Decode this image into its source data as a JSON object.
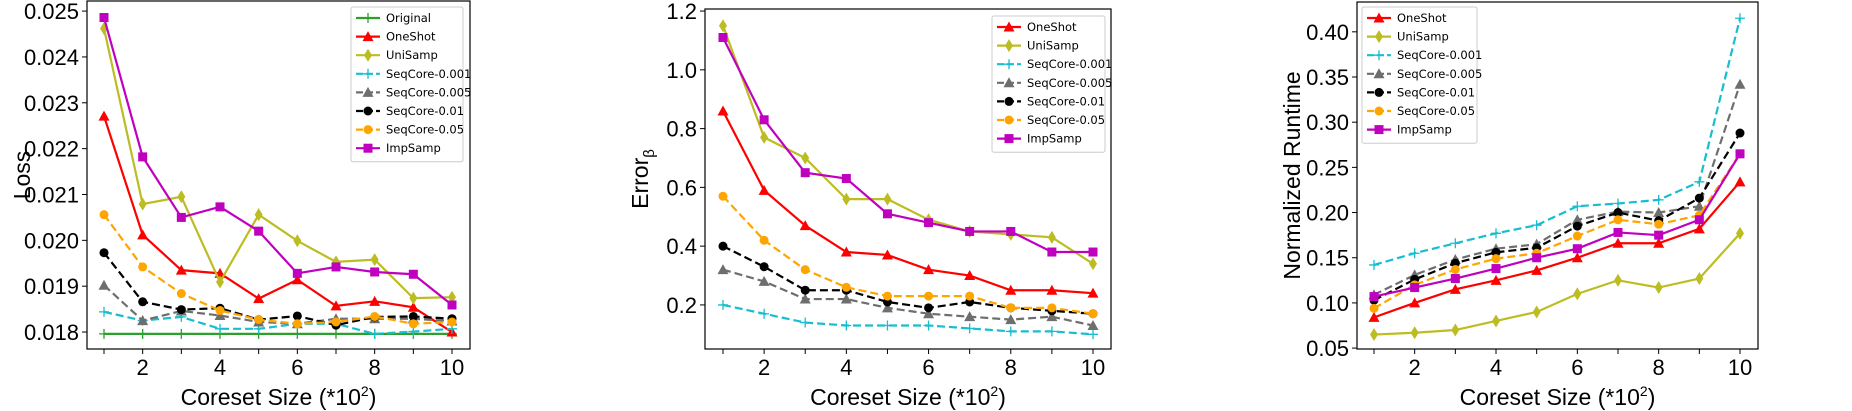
{
  "chart_data": [
    {
      "type": "line",
      "title": "",
      "xlabel": "Coreset Size (*10",
      "xlabel_sup": "2",
      "xlabel_end": ")",
      "ylabel": "Loss",
      "ylabel_sub": "",
      "x": [
        1,
        2,
        3,
        4,
        5,
        6,
        7,
        8,
        9,
        10
      ],
      "xticks": [
        "2",
        "4",
        "6",
        "8",
        "10"
      ],
      "yticks": [
        "0.018",
        "0.019",
        "0.020",
        "0.021",
        "0.022",
        "0.023",
        "0.024",
        "0.025"
      ],
      "ylim": [
        0.01763,
        0.02522
      ],
      "legend_placement": "top-right",
      "series": [
        {
          "name": "Original",
          "color": "#2ca02c",
          "dash": "solid",
          "marker": "plus",
          "values": [
            0.01796,
            0.01796,
            0.01796,
            0.01796,
            0.01796,
            0.01796,
            0.01796,
            0.01796,
            0.01796,
            0.01796
          ]
        },
        {
          "name": "OneShot",
          "color": "#ff0000",
          "dash": "solid",
          "marker": "triangle",
          "values": [
            0.02271,
            0.02012,
            0.01935,
            0.01928,
            0.01873,
            0.01914,
            0.01857,
            0.01867,
            0.01854,
            0.018
          ]
        },
        {
          "name": "UniSamp",
          "color": "#bcbd22",
          "dash": "solid",
          "marker": "thin-diamond",
          "values": [
            0.02462,
            0.02079,
            0.02095,
            0.01909,
            0.02056,
            0.01999,
            0.01953,
            0.01958,
            0.01874,
            0.01876
          ]
        },
        {
          "name": "SeqCore-0.001",
          "color": "#17becf",
          "dash": "dashed",
          "marker": "plus",
          "values": [
            0.01844,
            0.01825,
            0.01833,
            0.01807,
            0.01807,
            0.01818,
            0.01818,
            0.01796,
            0.01801,
            0.01807
          ]
        },
        {
          "name": "SeqCore-0.005",
          "color": "#6e6e6e",
          "dash": "dashed",
          "marker": "triangle",
          "values": [
            0.01902,
            0.01825,
            0.01846,
            0.01836,
            0.01822,
            0.01818,
            0.01829,
            0.01829,
            0.01829,
            0.01824
          ]
        },
        {
          "name": "SeqCore-0.01",
          "color": "#000000",
          "dash": "dashed",
          "marker": "circle",
          "values": [
            0.01973,
            0.01866,
            0.01849,
            0.01852,
            0.01827,
            0.01835,
            0.01815,
            0.01833,
            0.01834,
            0.01829
          ]
        },
        {
          "name": "SeqCore-0.05",
          "color": "#ffa500",
          "dash": "dashed",
          "marker": "circle",
          "values": [
            0.02056,
            0.01942,
            0.01884,
            0.01847,
            0.01827,
            0.01818,
            0.01822,
            0.01834,
            0.01818,
            0.01822
          ]
        },
        {
          "name": "ImpSamp",
          "color": "#bf00bf",
          "dash": "solid",
          "marker": "square",
          "values": [
            0.02486,
            0.02182,
            0.0205,
            0.02073,
            0.0202,
            0.01928,
            0.01942,
            0.01931,
            0.01926,
            0.01859
          ]
        }
      ]
    },
    {
      "type": "line",
      "title": "",
      "xlabel": "Coreset Size (*10",
      "xlabel_sup": "2",
      "xlabel_end": ")",
      "ylabel": "Error",
      "ylabel_sub": "β",
      "x": [
        1,
        2,
        3,
        4,
        5,
        6,
        7,
        8,
        9,
        10
      ],
      "xticks": [
        "2",
        "4",
        "6",
        "8",
        "10"
      ],
      "yticks": [
        "0.2",
        "0.4",
        "0.6",
        "0.8",
        "1.0",
        "1.2"
      ],
      "ylim": [
        0.05,
        1.207
      ],
      "legend_placement": "top-right",
      "series": [
        {
          "name": "OneShot",
          "color": "#ff0000",
          "dash": "solid",
          "marker": "triangle",
          "values": [
            0.86,
            0.59,
            0.47,
            0.38,
            0.37,
            0.32,
            0.3,
            0.25,
            0.25,
            0.24
          ]
        },
        {
          "name": "UniSamp",
          "color": "#bcbd22",
          "dash": "solid",
          "marker": "thin-diamond",
          "values": [
            1.15,
            0.77,
            0.7,
            0.56,
            0.56,
            0.49,
            0.45,
            0.44,
            0.43,
            0.34
          ]
        },
        {
          "name": "SeqCore-0.001",
          "color": "#17becf",
          "dash": "dashed",
          "marker": "plus",
          "values": [
            0.2,
            0.17,
            0.14,
            0.13,
            0.13,
            0.13,
            0.12,
            0.11,
            0.11,
            0.1
          ]
        },
        {
          "name": "SeqCore-0.005",
          "color": "#6e6e6e",
          "dash": "dashed",
          "marker": "triangle",
          "values": [
            0.32,
            0.28,
            0.22,
            0.22,
            0.19,
            0.17,
            0.16,
            0.15,
            0.16,
            0.13
          ]
        },
        {
          "name": "SeqCore-0.01",
          "color": "#000000",
          "dash": "dashed",
          "marker": "circle",
          "values": [
            0.4,
            0.33,
            0.25,
            0.25,
            0.21,
            0.19,
            0.21,
            0.19,
            0.18,
            0.17
          ]
        },
        {
          "name": "SeqCore-0.05",
          "color": "#ffa500",
          "dash": "dashed",
          "marker": "circle",
          "values": [
            0.57,
            0.42,
            0.32,
            0.26,
            0.23,
            0.23,
            0.23,
            0.19,
            0.19,
            0.17
          ]
        },
        {
          "name": "ImpSamp",
          "color": "#bf00bf",
          "dash": "solid",
          "marker": "square",
          "values": [
            1.11,
            0.83,
            0.65,
            0.63,
            0.51,
            0.48,
            0.45,
            0.45,
            0.38,
            0.38
          ]
        }
      ]
    },
    {
      "type": "line",
      "title": "",
      "xlabel": "Coreset Size (*10",
      "xlabel_sup": "2",
      "xlabel_end": ")",
      "ylabel": "Normalized Runtime",
      "ylabel_sub": "",
      "x": [
        1,
        2,
        3,
        4,
        5,
        6,
        7,
        8,
        9,
        10
      ],
      "xticks": [
        "2",
        "4",
        "6",
        "8",
        "10"
      ],
      "yticks": [
        "0.05",
        "0.10",
        "0.15",
        "0.20",
        "0.25",
        "0.30",
        "0.35",
        "0.40"
      ],
      "ylim": [
        0.049,
        0.433
      ],
      "legend_placement": "top-left",
      "series": [
        {
          "name": "OneShot",
          "color": "#ff0000",
          "dash": "solid",
          "marker": "triangle",
          "values": [
            0.084,
            0.1,
            0.115,
            0.125,
            0.136,
            0.15,
            0.166,
            0.166,
            0.182,
            0.234
          ]
        },
        {
          "name": "UniSamp",
          "color": "#bcbd22",
          "dash": "solid",
          "marker": "thin-diamond",
          "values": [
            0.065,
            0.067,
            0.07,
            0.08,
            0.09,
            0.11,
            0.125,
            0.117,
            0.127,
            0.177
          ]
        },
        {
          "name": "SeqCore-0.001",
          "color": "#17becf",
          "dash": "dashed",
          "marker": "plus",
          "values": [
            0.142,
            0.155,
            0.166,
            0.177,
            0.186,
            0.207,
            0.21,
            0.214,
            0.234,
            0.415
          ]
        },
        {
          "name": "SeqCore-0.005",
          "color": "#6e6e6e",
          "dash": "dashed",
          "marker": "triangle",
          "values": [
            0.109,
            0.131,
            0.148,
            0.16,
            0.165,
            0.192,
            0.201,
            0.2,
            0.207,
            0.342
          ]
        },
        {
          "name": "SeqCore-0.01",
          "color": "#000000",
          "dash": "dashed",
          "marker": "circle",
          "values": [
            0.103,
            0.126,
            0.144,
            0.156,
            0.161,
            0.185,
            0.2,
            0.191,
            0.216,
            0.288
          ]
        },
        {
          "name": "SeqCore-0.05",
          "color": "#ffa500",
          "dash": "dashed",
          "marker": "circle",
          "values": [
            0.094,
            0.12,
            0.137,
            0.149,
            0.155,
            0.174,
            0.192,
            0.187,
            0.197,
            0.265
          ]
        },
        {
          "name": "ImpSamp",
          "color": "#bf00bf",
          "dash": "solid",
          "marker": "square",
          "values": [
            0.107,
            0.117,
            0.127,
            0.138,
            0.15,
            0.16,
            0.178,
            0.175,
            0.192,
            0.265
          ]
        }
      ]
    }
  ]
}
